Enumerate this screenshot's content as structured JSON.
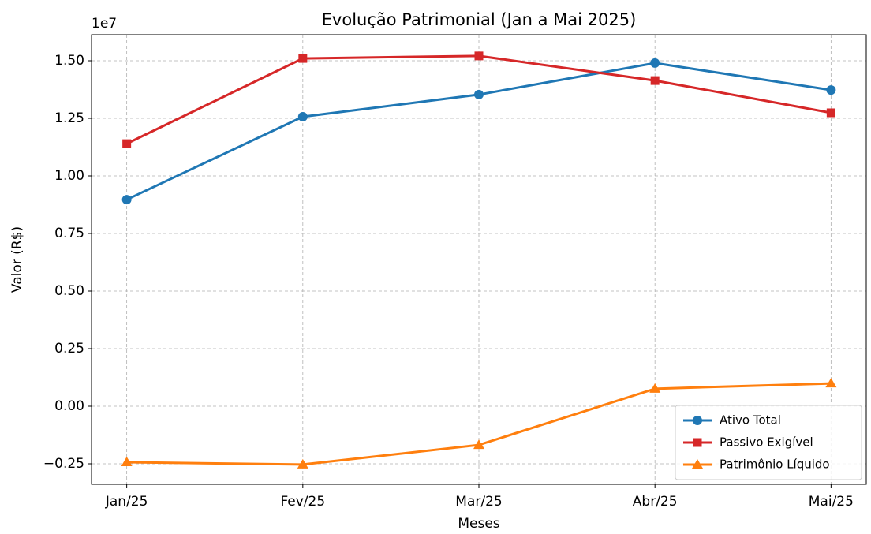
{
  "chart_data": {
    "type": "line",
    "title": "Evolução Patrimonial (Jan a Mai 2025)",
    "x_label": "Meses",
    "y_label": "Valor (R$)",
    "y_offset_label": "1e7",
    "categories": [
      "Jan/25",
      "Fev/25",
      "Mar/25",
      "Abr/25",
      "Mai/25"
    ],
    "series": [
      {
        "name": "Ativo Total",
        "color": "#1f77b4",
        "marker": "circle",
        "values": [
          8970000,
          12570000,
          13530000,
          14900000,
          13730000
        ]
      },
      {
        "name": "Passivo Exigível",
        "color": "#d62728",
        "marker": "square",
        "values": [
          11400000,
          15100000,
          15210000,
          14140000,
          12740000
        ]
      },
      {
        "name": "Patrimônio Líquido",
        "color": "#ff7f0e",
        "marker": "triangle",
        "values": [
          -2430000,
          -2530000,
          -1680000,
          760000,
          990000
        ]
      }
    ],
    "ylim": [
      -3390000,
      16130000
    ],
    "yticks": [
      {
        "value": -2500000,
        "label": "−0.25"
      },
      {
        "value": 0,
        "label": "0.00"
      },
      {
        "value": 2500000,
        "label": "0.25"
      },
      {
        "value": 5000000,
        "label": "0.50"
      },
      {
        "value": 7500000,
        "label": "0.75"
      },
      {
        "value": 10000000,
        "label": "1.00"
      },
      {
        "value": 12500000,
        "label": "1.25"
      },
      {
        "value": 15000000,
        "label": "1.50"
      }
    ],
    "grid": true,
    "legend_position": "lower right"
  }
}
